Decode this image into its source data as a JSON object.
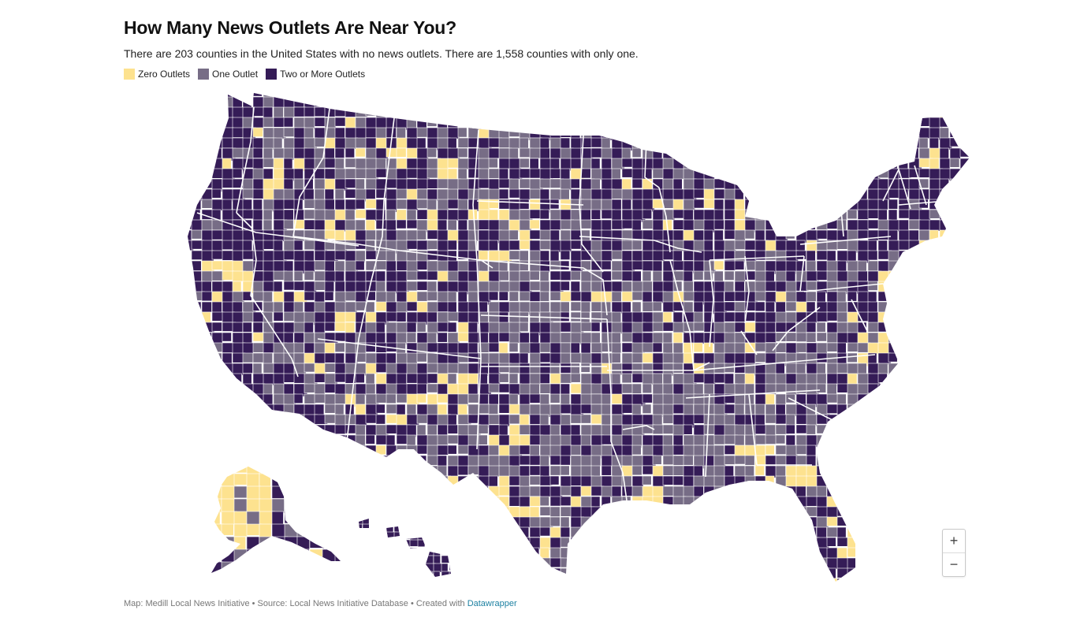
{
  "header": {
    "title": "How Many News Outlets Are Near You?",
    "subtitle": "There are 203 counties in the United States with no news outlets. There are 1,558 counties with only one."
  },
  "legend": {
    "items": [
      {
        "label": "Zero Outlets",
        "color": "#fde28f"
      },
      {
        "label": "One Outlet",
        "color": "#776d86"
      },
      {
        "label": "Two or More Outlets",
        "color": "#351c57"
      }
    ]
  },
  "map": {
    "colors": {
      "zero": "#fde28f",
      "one": "#776d86",
      "two_plus": "#351c57",
      "border": "#ffffff"
    }
  },
  "zoom": {
    "in_label": "+",
    "out_label": "−"
  },
  "footer": {
    "text": "Map: Medill Local News Initiative • Source: Local News Initiative Database • Created with ",
    "link_label": "Datawrapper"
  }
}
